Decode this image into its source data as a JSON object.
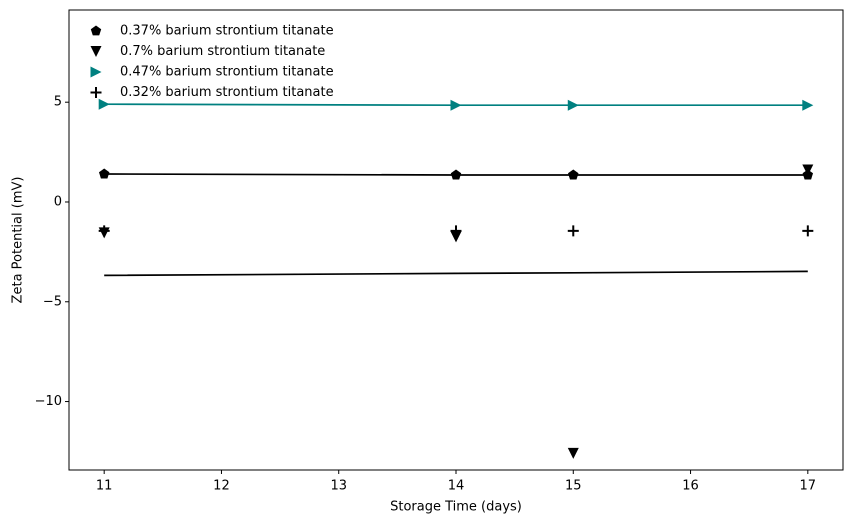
{
  "chart_data": {
    "type": "scatter",
    "x_label": "Storage Time (days)",
    "y_label": "Zeta Potential (mV)",
    "x": [
      11,
      14,
      15,
      17
    ],
    "xlim": [
      10.7,
      17.3
    ],
    "xticks": [
      11,
      12,
      13,
      14,
      15,
      16,
      17
    ],
    "ylim": [
      -13.43,
      9.62
    ],
    "yticks": [
      {
        "value": -10,
        "label": "−10"
      },
      {
        "value": -5,
        "label": "−5"
      },
      0,
      5
    ],
    "legend": "upper left",
    "series": [
      {
        "name": "0.37% barium strontium titanate",
        "color": "#000000",
        "marker": "pentagon",
        "line": true,
        "values": [
          1.4,
          1.35,
          1.35,
          1.35
        ]
      },
      {
        "name": "0.7% barium strontium titanate",
        "color": "#000000",
        "marker": "triangle-down",
        "line": false,
        "values": [
          -1.55,
          -1.75,
          -12.6,
          1.6
        ]
      },
      {
        "name": "0.47% barium strontium titanate",
        "color": "#008080",
        "marker": "triangle-right",
        "line": true,
        "values": [
          4.9,
          4.85,
          4.85,
          4.85
        ]
      },
      {
        "name": "0.32% barium strontium titanate",
        "color": "#000000",
        "marker": "plus",
        "line": false,
        "values": [
          -1.45,
          -1.45,
          -1.45,
          -1.45
        ]
      },
      {
        "color": "#000000",
        "line": true,
        "values": [
          -3.68,
          -3.58,
          -3.55,
          -3.48
        ]
      }
    ]
  }
}
